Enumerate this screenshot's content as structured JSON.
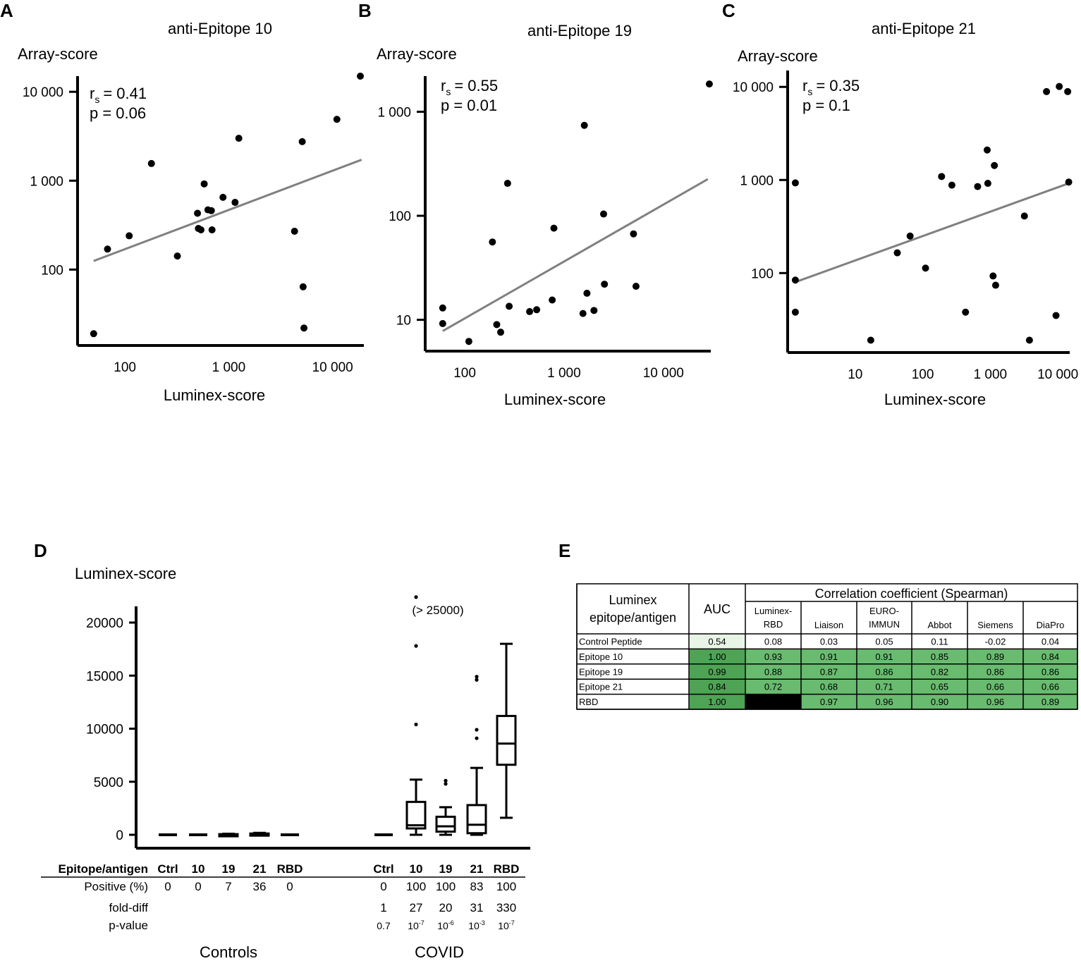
{
  "panels": {
    "A": {
      "letter": "A",
      "title": "anti-Epitope 10",
      "ylabel": "Array-score",
      "xlabel": "Luminex-score",
      "stat_r": "= 0.41",
      "stat_p": "p = 0.06"
    },
    "B": {
      "letter": "B",
      "title": "anti-Epitope 19",
      "ylabel": "Array-score",
      "xlabel": "Luminex-score",
      "stat_r": "= 0.55",
      "stat_p": "p = 0.01"
    },
    "C": {
      "letter": "C",
      "title": "anti-Epitope 21",
      "ylabel": "Array-score",
      "xlabel": "Luminex-score",
      "stat_r": "= 0.35",
      "stat_p": "p = 0.1"
    },
    "D": {
      "letter": "D",
      "ylabel": "Luminex-score",
      "outlier_note": "(> 25000)"
    },
    "E": {
      "letter": "E"
    }
  },
  "stat_symbol": {
    "r": "r",
    "s": "s"
  },
  "chart_data": [
    {
      "type": "scatter",
      "panel": "A",
      "xscale": "log",
      "yscale": "log",
      "xlim": [
        35,
        20000
      ],
      "ylim": [
        14,
        15000
      ],
      "xticks": [
        {
          "v": 100,
          "label": "100"
        },
        {
          "v": 1000,
          "label": "1 000"
        },
        {
          "v": 10000,
          "label": "10 000"
        }
      ],
      "yticks": [
        {
          "v": 100,
          "label": "100"
        },
        {
          "v": 1000,
          "label": "1 000"
        },
        {
          "v": 10000,
          "label": "10 000"
        }
      ],
      "points": [
        [
          50,
          19
        ],
        [
          68,
          170
        ],
        [
          110,
          240
        ],
        [
          180,
          1560
        ],
        [
          320,
          142
        ],
        [
          500,
          430
        ],
        [
          510,
          290
        ],
        [
          540,
          280
        ],
        [
          580,
          920
        ],
        [
          630,
          470
        ],
        [
          680,
          460
        ],
        [
          690,
          280
        ],
        [
          880,
          650
        ],
        [
          1150,
          570
        ],
        [
          1250,
          3000
        ],
        [
          4300,
          270
        ],
        [
          5100,
          2750
        ],
        [
          5200,
          64
        ],
        [
          5300,
          22
        ],
        [
          11000,
          4900
        ],
        [
          18500,
          15000
        ]
      ],
      "fit": [
        [
          50,
          125
        ],
        [
          19000,
          1720
        ]
      ]
    },
    {
      "type": "scatter",
      "panel": "B",
      "xscale": "log",
      "yscale": "log",
      "xlim": [
        40,
        30000
      ],
      "ylim": [
        5,
        2200
      ],
      "xticks": [
        {
          "v": 100,
          "label": "100"
        },
        {
          "v": 1000,
          "label": "1 000"
        },
        {
          "v": 10000,
          "label": "10 000"
        }
      ],
      "yticks": [
        {
          "v": 10,
          "label": "10"
        },
        {
          "v": 100,
          "label": "100"
        },
        {
          "v": 1000,
          "label": "1 000"
        }
      ],
      "points": [
        [
          60,
          13
        ],
        [
          60,
          9.2
        ],
        [
          110,
          6.2
        ],
        [
          190,
          56
        ],
        [
          210,
          9
        ],
        [
          230,
          7.6
        ],
        [
          270,
          205
        ],
        [
          280,
          13.5
        ],
        [
          450,
          12
        ],
        [
          530,
          12.5
        ],
        [
          760,
          15.5
        ],
        [
          790,
          76
        ],
        [
          1550,
          11.5
        ],
        [
          1600,
          740
        ],
        [
          1700,
          18
        ],
        [
          2000,
          12.3
        ],
        [
          2500,
          104
        ],
        [
          2550,
          22
        ],
        [
          5000,
          67
        ],
        [
          5300,
          21
        ],
        [
          29000,
          1850
        ]
      ],
      "fit": [
        [
          60,
          7.8
        ],
        [
          28000,
          225
        ]
      ]
    },
    {
      "type": "scatter",
      "panel": "C",
      "xscale": "log",
      "yscale": "log",
      "xlim": [
        1,
        15000
      ],
      "ylim": [
        14,
        15000
      ],
      "xticks": [
        {
          "v": 10,
          "label": "10"
        },
        {
          "v": 100,
          "label": "100"
        },
        {
          "v": 1000,
          "label": "1 000"
        },
        {
          "v": 10000,
          "label": "10 000"
        }
      ],
      "yticks": [
        {
          "v": 100,
          "label": "100"
        },
        {
          "v": 1000,
          "label": "1 000"
        },
        {
          "v": 10000,
          "label": "10 000"
        }
      ],
      "points": [
        [
          1.3,
          84
        ],
        [
          1.3,
          38
        ],
        [
          1.3,
          930
        ],
        [
          17,
          19
        ],
        [
          42,
          165
        ],
        [
          65,
          250
        ],
        [
          110,
          113
        ],
        [
          190,
          1090
        ],
        [
          270,
          880
        ],
        [
          430,
          38
        ],
        [
          650,
          850
        ],
        [
          900,
          2100
        ],
        [
          920,
          920
        ],
        [
          1100,
          93
        ],
        [
          1150,
          1430
        ],
        [
          1200,
          74
        ],
        [
          3200,
          410
        ],
        [
          3800,
          19
        ],
        [
          6800,
          8900
        ],
        [
          9400,
          35
        ],
        [
          10500,
          10100
        ],
        [
          14000,
          8900
        ],
        [
          14500,
          950
        ]
      ],
      "fit": [
        [
          1.3,
          80
        ],
        [
          14500,
          920
        ]
      ]
    },
    {
      "type": "box",
      "panel": "D",
      "ylim": [
        0,
        22000
      ],
      "yticks": [
        {
          "v": 0,
          "label": "0"
        },
        {
          "v": 5000,
          "label": "5000"
        },
        {
          "v": 10000,
          "label": "10000"
        },
        {
          "v": 15000,
          "label": "15000"
        },
        {
          "v": 20000,
          "label": "20000"
        }
      ],
      "categories": [
        "Ctrl",
        "10",
        "19",
        "21",
        "RBD",
        "Ctrl",
        "10",
        "19",
        "21",
        "RBD"
      ],
      "boxes": [
        {
          "label": "Ctrl",
          "group": "Controls",
          "min": 0,
          "q1": 0,
          "median": 0,
          "q3": 0,
          "max": 0,
          "outliers": []
        },
        {
          "label": "10",
          "group": "Controls",
          "min": 0,
          "q1": 0,
          "median": 0,
          "q3": 0,
          "max": 0,
          "outliers": []
        },
        {
          "label": "19",
          "group": "Controls",
          "min": 0,
          "q1": 0,
          "median": 0,
          "q3": 60,
          "max": 100,
          "outliers": []
        },
        {
          "label": "21",
          "group": "Controls",
          "min": 0,
          "q1": 0,
          "median": 0,
          "q3": 120,
          "max": 180,
          "outliers": []
        },
        {
          "label": "RBD",
          "group": "Controls",
          "min": 0,
          "q1": 0,
          "median": 0,
          "q3": 0,
          "max": 0,
          "outliers": []
        },
        {
          "label": "Ctrl",
          "group": "COVID",
          "min": 0,
          "q1": 0,
          "median": 0,
          "q3": 0,
          "max": 0,
          "outliers": []
        },
        {
          "label": "10",
          "group": "COVID",
          "min": 0,
          "q1": 600,
          "median": 900,
          "q3": 3100,
          "max": 5200,
          "outliers": [
            10400,
            17800,
            22400
          ]
        },
        {
          "label": "19",
          "group": "COVID",
          "min": 0,
          "q1": 300,
          "median": 800,
          "q3": 1700,
          "max": 2600,
          "outliers": [
            4800,
            5100
          ]
        },
        {
          "label": "21",
          "group": "COVID",
          "min": 0,
          "q1": 150,
          "median": 950,
          "q3": 2800,
          "max": 6300,
          "outliers": [
            9100,
            9900,
            14600,
            14900
          ]
        },
        {
          "label": "RBD",
          "group": "COVID",
          "min": 1600,
          "q1": 6600,
          "median": 8600,
          "q3": 11200,
          "max": 18000,
          "outliers": []
        }
      ],
      "table": {
        "row_labels": [
          "Epitope/antigen",
          "Positive (%)",
          "fold-diff",
          "p-value"
        ],
        "positive": [
          "0",
          "0",
          "7",
          "36",
          "0",
          "0",
          "100",
          "100",
          "83",
          "100"
        ],
        "fold_diff": [
          "",
          "",
          "",
          "",
          "",
          "1",
          "27",
          "20",
          "31",
          "330"
        ],
        "p_value_base": [
          "",
          "",
          "",
          "",
          "",
          "0.7",
          "10",
          "10",
          "10",
          "10"
        ],
        "p_value_exp": [
          "",
          "",
          "",
          "",
          "",
          "",
          "-7",
          "-6",
          "-3",
          "-7"
        ],
        "groups": [
          "Controls",
          "COVID"
        ]
      }
    },
    {
      "type": "table",
      "panel": "E",
      "header_left": [
        "Luminex",
        "epitope/antigen"
      ],
      "header_auc": "AUC",
      "header_group": "Correlation coefficient (Spearman)",
      "columns": [
        [
          "Luminex-",
          "RBD"
        ],
        [
          "Liaison"
        ],
        [
          "EURO-",
          "IMMUN"
        ],
        [
          "Abbot"
        ],
        [
          "Siemens"
        ],
        [
          "DiaPro"
        ]
      ],
      "rows": [
        {
          "label": "Control Peptide",
          "auc": "0.54",
          "values": [
            "0.08",
            "0.03",
            "0.05",
            "0.11",
            "-0.02",
            "0.04"
          ]
        },
        {
          "label": "Epitope 10",
          "auc": "1.00",
          "values": [
            "0.93",
            "0.91",
            "0.91",
            "0.85",
            "0.89",
            "0.84"
          ]
        },
        {
          "label": "Epitope 19",
          "auc": "0.99",
          "values": [
            "0.88",
            "0.87",
            "0.86",
            "0.82",
            "0.86",
            "0.86"
          ]
        },
        {
          "label": "Epitope 21",
          "auc": "0.84",
          "values": [
            "0.72",
            "0.68",
            "0.71",
            "0.65",
            "0.66",
            "0.66"
          ]
        },
        {
          "label": "RBD",
          "auc": "1.00",
          "values": [
            "",
            "0.97",
            "0.96",
            "0.90",
            "0.96",
            "0.89"
          ]
        }
      ],
      "colors": {
        "green": "#69bb6f",
        "dark_green": "#4ea355",
        "pale_green": "#e7f4e6",
        "black": "#000000"
      }
    }
  ]
}
